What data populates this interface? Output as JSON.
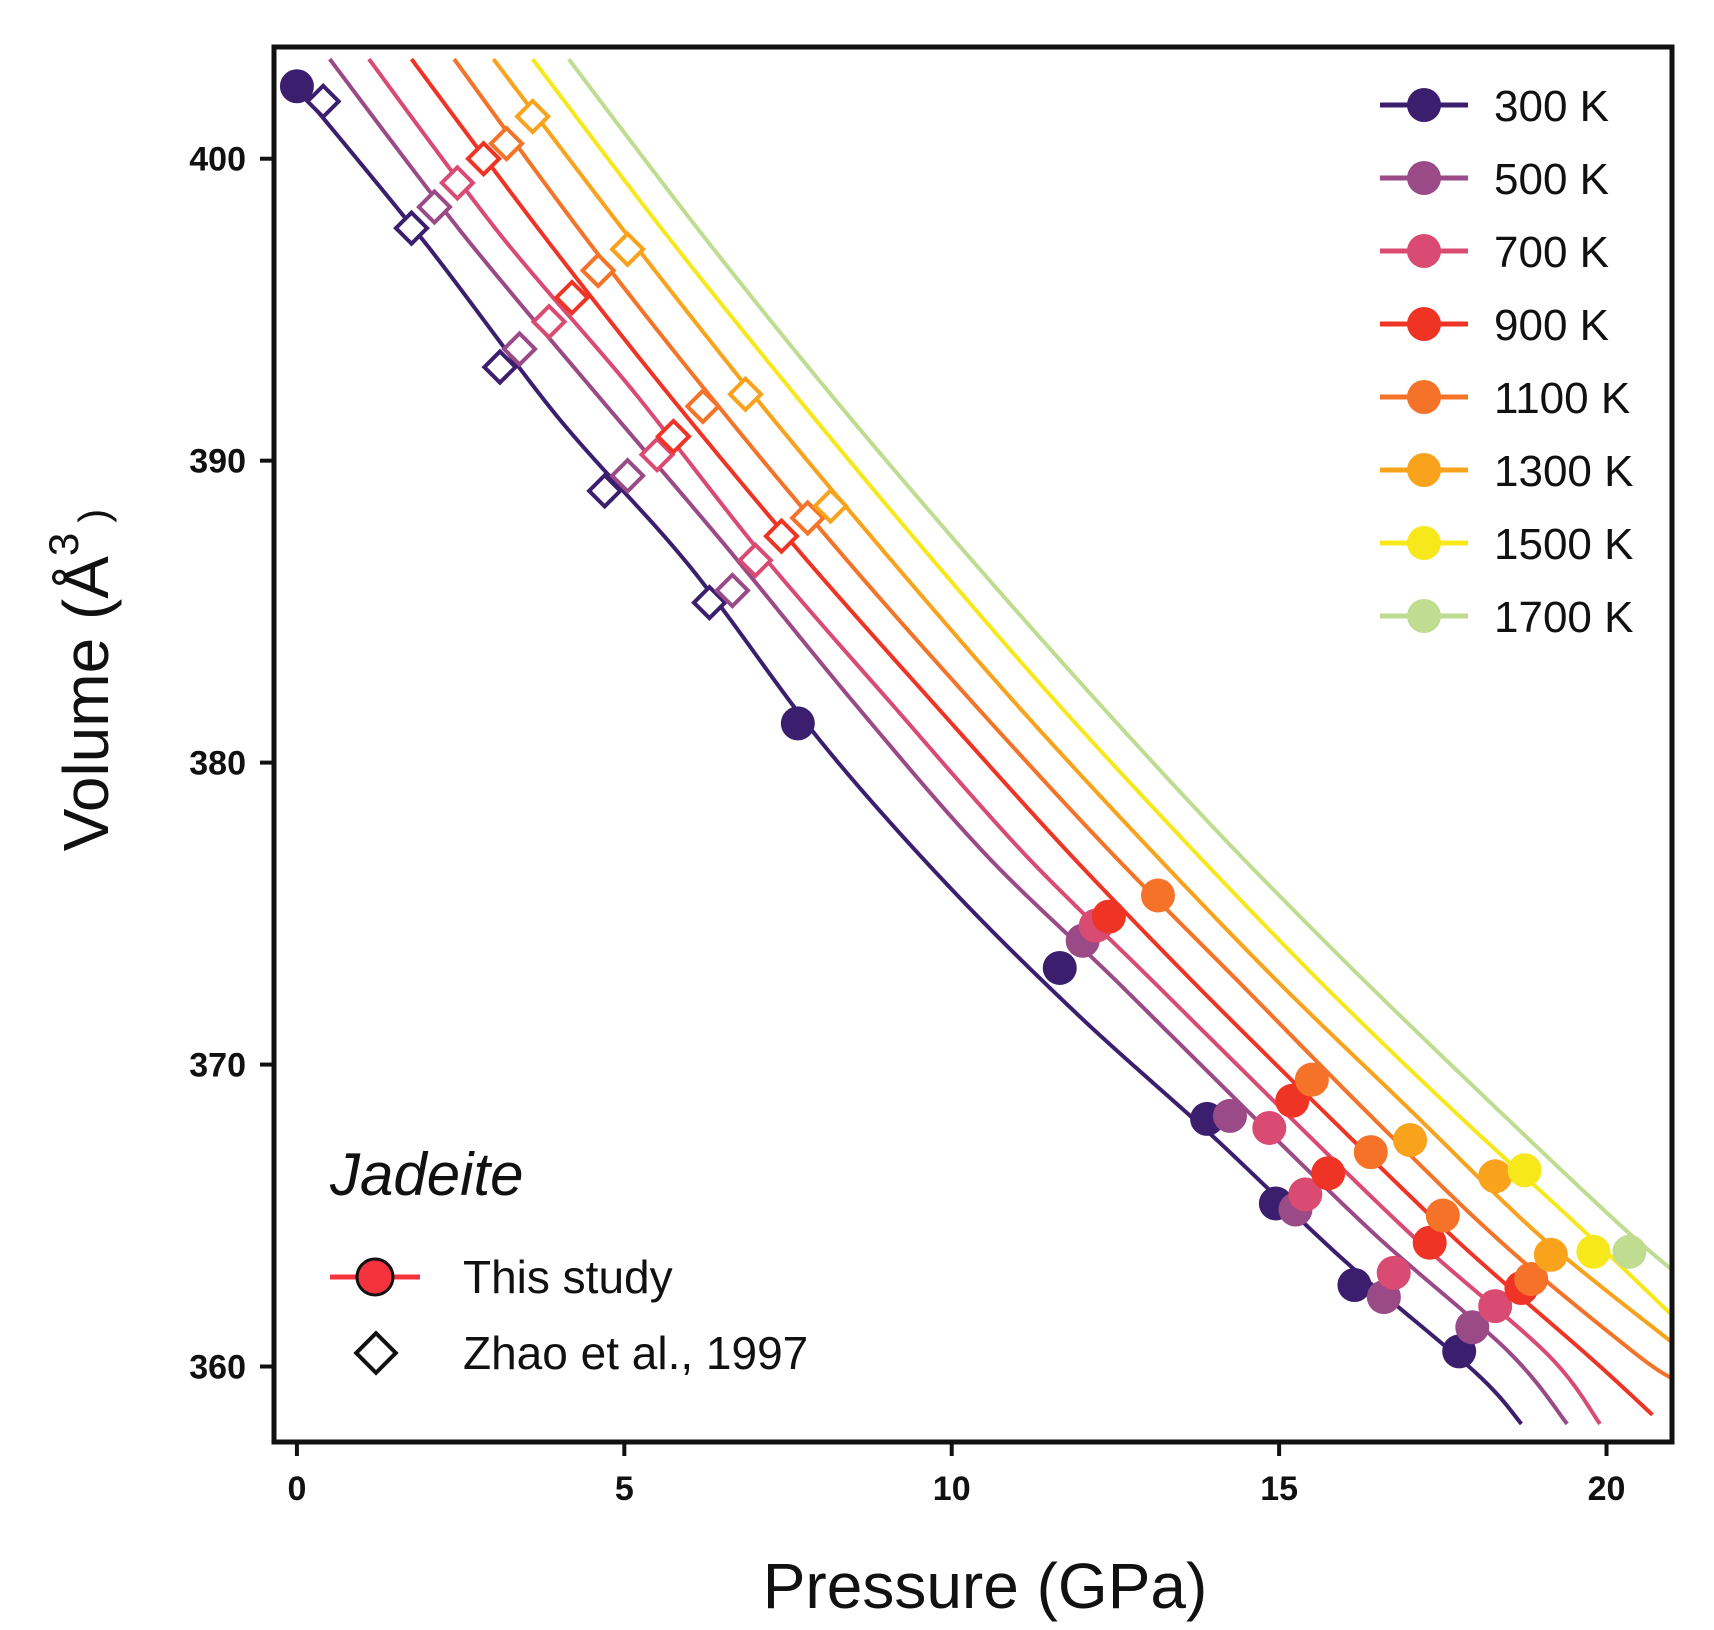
{
  "chart_data": {
    "type": "scatter",
    "xlabel": "Pressure (GPa)",
    "ylabel": "Volume (Å",
    "ylabel_sup": "3",
    "ylabel_close": ")",
    "xlim": [
      -0.35,
      21.0
    ],
    "ylim": [
      357.5,
      403.7
    ],
    "x_ticks": [
      0,
      5,
      10,
      15,
      20
    ],
    "x_tick_labels": [
      "0",
      "5",
      "10",
      "15",
      "20"
    ],
    "y_ticks": [
      360,
      370,
      380,
      390,
      400
    ],
    "y_tick_labels": [
      "360",
      "370",
      "380",
      "390",
      "400"
    ],
    "grid": false,
    "legend_position": "top-right",
    "annotation": {
      "title": "Jadeite",
      "this_study_label": "This study",
      "zhao_label": "Zhao et al., 1997",
      "this_study_color": "#f5333f"
    },
    "series": [
      {
        "name": "300 K",
        "color": "#3b1f6e",
        "fit": [
          [
            0,
            402.4
          ],
          [
            2,
            397.1
          ],
          [
            4,
            391.4
          ],
          [
            6,
            386.5
          ],
          [
            8,
            380.7
          ],
          [
            10,
            375.8
          ],
          [
            12,
            371.5
          ],
          [
            14,
            367.6
          ],
          [
            16,
            363.5
          ],
          [
            18,
            359.8
          ],
          [
            18.7,
            358.1
          ]
        ],
        "this_study": [
          [
            0.0,
            402.4
          ],
          [
            7.65,
            381.3
          ],
          [
            11.65,
            373.2
          ],
          [
            13.9,
            368.2
          ],
          [
            14.95,
            365.4
          ],
          [
            16.15,
            362.7
          ],
          [
            17.75,
            360.5
          ]
        ],
        "zhao": [
          [
            0.4,
            401.9
          ],
          [
            1.75,
            397.7
          ],
          [
            3.1,
            393.1
          ],
          [
            4.7,
            389.0
          ],
          [
            6.3,
            385.3
          ]
        ]
      },
      {
        "name": "500 K",
        "color": "#9a4a86",
        "fit": [
          [
            0.5,
            403.3
          ],
          [
            2.5,
            397.6
          ],
          [
            4.5,
            392.4
          ],
          [
            6.5,
            387.3
          ],
          [
            8.5,
            382.0
          ],
          [
            10.5,
            377.0
          ],
          [
            12.5,
            372.8
          ],
          [
            14.5,
            368.5
          ],
          [
            16.5,
            364.3
          ],
          [
            18.5,
            360.5
          ],
          [
            19.4,
            358.1
          ]
        ],
        "this_study": [
          [
            12.0,
            374.1
          ],
          [
            14.25,
            368.3
          ],
          [
            15.25,
            365.2
          ],
          [
            16.6,
            362.3
          ],
          [
            17.95,
            361.3
          ]
        ],
        "zhao": [
          [
            2.1,
            398.4
          ],
          [
            3.4,
            393.7
          ],
          [
            5.05,
            389.5
          ],
          [
            6.65,
            385.7
          ]
        ]
      },
      {
        "name": "700 K",
        "color": "#d94b72",
        "fit": [
          [
            1.1,
            403.3
          ],
          [
            3.1,
            397.5
          ],
          [
            5.1,
            392.4
          ],
          [
            7.1,
            386.9
          ],
          [
            9.1,
            381.9
          ],
          [
            11.1,
            377.0
          ],
          [
            13.1,
            372.7
          ],
          [
            15.1,
            368.4
          ],
          [
            17.1,
            364.2
          ],
          [
            19.1,
            360.4
          ],
          [
            19.9,
            358.1
          ]
        ],
        "this_study": [
          [
            12.2,
            374.6
          ],
          [
            14.85,
            367.9
          ],
          [
            15.4,
            365.7
          ],
          [
            16.75,
            363.1
          ],
          [
            18.3,
            362.0
          ]
        ],
        "zhao": [
          [
            2.45,
            399.2
          ],
          [
            3.85,
            394.6
          ],
          [
            5.5,
            390.2
          ],
          [
            7.0,
            386.7
          ]
        ]
      },
      {
        "name": "900 K",
        "color": "#ef3426",
        "fit": [
          [
            1.75,
            403.3
          ],
          [
            3.75,
            397.5
          ],
          [
            5.75,
            392.0
          ],
          [
            7.75,
            386.8
          ],
          [
            9.75,
            381.9
          ],
          [
            11.75,
            377.1
          ],
          [
            13.75,
            372.6
          ],
          [
            15.75,
            368.3
          ],
          [
            17.75,
            364.1
          ],
          [
            19.75,
            360.3
          ],
          [
            20.7,
            358.4
          ]
        ],
        "this_study": [
          [
            12.4,
            374.9
          ],
          [
            15.2,
            368.8
          ],
          [
            15.75,
            366.4
          ],
          [
            17.3,
            364.1
          ],
          [
            18.7,
            362.6
          ]
        ],
        "zhao": [
          [
            2.85,
            400.0
          ],
          [
            4.2,
            395.4
          ],
          [
            5.75,
            390.8
          ],
          [
            7.4,
            387.5
          ]
        ]
      },
      {
        "name": "1100 K",
        "color": "#f47328",
        "fit": [
          [
            2.4,
            403.3
          ],
          [
            4.4,
            397.4
          ],
          [
            6.4,
            391.9
          ],
          [
            8.4,
            386.7
          ],
          [
            10.4,
            381.8
          ],
          [
            12.4,
            377.1
          ],
          [
            14.4,
            372.7
          ],
          [
            16.4,
            368.3
          ],
          [
            18.4,
            364.1
          ],
          [
            20.4,
            360.5
          ],
          [
            21.0,
            359.6
          ]
        ],
        "this_study": [
          [
            13.15,
            375.6
          ],
          [
            15.5,
            369.5
          ],
          [
            16.4,
            367.1
          ],
          [
            17.5,
            365.0
          ],
          [
            18.85,
            362.9
          ]
        ],
        "zhao": [
          [
            3.2,
            400.5
          ],
          [
            4.6,
            396.3
          ],
          [
            6.2,
            391.8
          ],
          [
            7.8,
            388.1
          ]
        ]
      },
      {
        "name": "1300 K",
        "color": "#f9a21b",
        "fit": [
          [
            3.0,
            403.3
          ],
          [
            5.0,
            397.6
          ],
          [
            7.0,
            392.1
          ],
          [
            9.0,
            386.9
          ],
          [
            11.0,
            381.9
          ],
          [
            13.0,
            377.2
          ],
          [
            15.0,
            372.7
          ],
          [
            17.0,
            368.5
          ],
          [
            19.0,
            364.3
          ],
          [
            21.0,
            360.8
          ]
        ],
        "this_study": [
          [
            17.0,
            367.5
          ],
          [
            18.3,
            366.3
          ],
          [
            19.15,
            363.7
          ]
        ],
        "zhao": [
          [
            3.6,
            401.4
          ],
          [
            5.05,
            397.0
          ],
          [
            6.85,
            392.2
          ],
          [
            8.15,
            388.5
          ]
        ]
      },
      {
        "name": "1500 K",
        "color": "#f6e81a",
        "fit": [
          [
            3.6,
            403.3
          ],
          [
            5.6,
            397.6
          ],
          [
            7.6,
            392.2
          ],
          [
            9.6,
            387.0
          ],
          [
            11.6,
            382.0
          ],
          [
            13.6,
            377.3
          ],
          [
            15.6,
            372.8
          ],
          [
            17.6,
            368.6
          ],
          [
            19.6,
            364.6
          ],
          [
            21.0,
            361.7
          ]
        ],
        "this_study": [
          [
            18.75,
            366.5
          ],
          [
            19.8,
            363.8
          ]
        ],
        "zhao": []
      },
      {
        "name": "1700 K",
        "color": "#bfdc91",
        "fit": [
          [
            4.15,
            403.3
          ],
          [
            6.15,
            397.6
          ],
          [
            8.15,
            392.2
          ],
          [
            10.15,
            387.1
          ],
          [
            12.15,
            382.2
          ],
          [
            14.15,
            377.5
          ],
          [
            16.15,
            373.1
          ],
          [
            18.15,
            368.9
          ],
          [
            20.15,
            364.8
          ],
          [
            21.0,
            363.2
          ]
        ],
        "this_study": [
          [
            20.35,
            363.8
          ]
        ],
        "zhao": []
      }
    ]
  }
}
